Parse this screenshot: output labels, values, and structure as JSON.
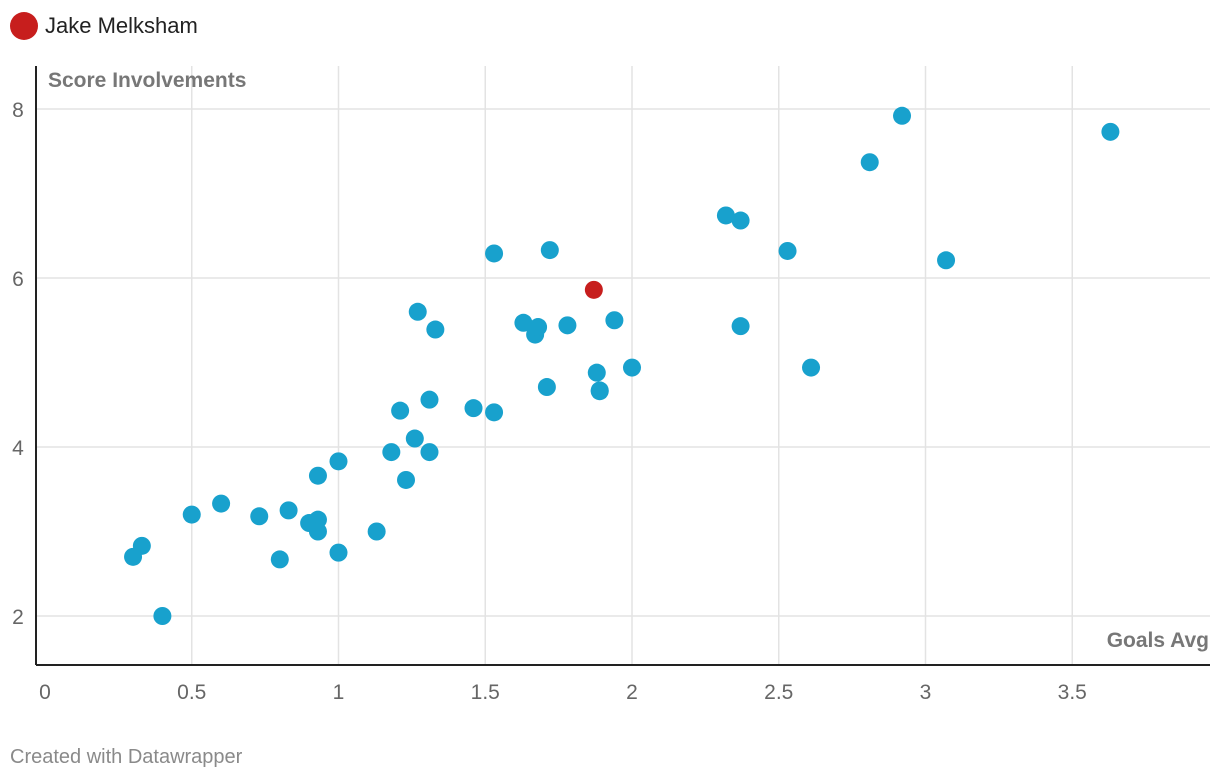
{
  "legend": {
    "label": "Jake Melksham",
    "color": "#c71e1d"
  },
  "footer": "Created with Datawrapper",
  "colors": {
    "default_point": "#18a1cd",
    "highlight_point": "#c71e1d",
    "grid": "#e3e3e3",
    "axis": "#222222",
    "tick_text": "#666666",
    "axis_title": "#777777"
  },
  "chart_data": {
    "type": "scatter",
    "title": "",
    "xlabel": "Goals Avg",
    "ylabel": "Score Involvements",
    "xlim": [
      0,
      3.95
    ],
    "ylim": [
      1.45,
      8.5
    ],
    "xticks": [
      "0",
      "0.5",
      "1",
      "1.5",
      "2",
      "2.5",
      "3",
      "3.5"
    ],
    "yticks": [
      "2",
      "4",
      "6",
      "8"
    ],
    "grid": true,
    "highlight": {
      "name": "Jake Melksham",
      "x": 1.87,
      "y": 5.86
    },
    "points": [
      {
        "x": 0.3,
        "y": 2.7
      },
      {
        "x": 0.33,
        "y": 2.83
      },
      {
        "x": 0.4,
        "y": 2.0
      },
      {
        "x": 0.5,
        "y": 3.2
      },
      {
        "x": 0.6,
        "y": 3.33
      },
      {
        "x": 0.73,
        "y": 3.18
      },
      {
        "x": 0.8,
        "y": 2.67
      },
      {
        "x": 0.83,
        "y": 3.25
      },
      {
        "x": 0.9,
        "y": 3.1
      },
      {
        "x": 0.93,
        "y": 3.14
      },
      {
        "x": 0.93,
        "y": 3.0
      },
      {
        "x": 0.93,
        "y": 3.66
      },
      {
        "x": 1.0,
        "y": 3.83
      },
      {
        "x": 1.0,
        "y": 2.75
      },
      {
        "x": 1.13,
        "y": 3.0
      },
      {
        "x": 1.18,
        "y": 3.94
      },
      {
        "x": 1.21,
        "y": 4.43
      },
      {
        "x": 1.23,
        "y": 3.61
      },
      {
        "x": 1.26,
        "y": 4.1
      },
      {
        "x": 1.27,
        "y": 5.6
      },
      {
        "x": 1.31,
        "y": 4.56
      },
      {
        "x": 1.31,
        "y": 3.94
      },
      {
        "x": 1.33,
        "y": 5.39
      },
      {
        "x": 1.46,
        "y": 4.46
      },
      {
        "x": 1.53,
        "y": 4.41
      },
      {
        "x": 1.53,
        "y": 6.29
      },
      {
        "x": 1.63,
        "y": 5.47
      },
      {
        "x": 1.67,
        "y": 5.33
      },
      {
        "x": 1.68,
        "y": 5.42
      },
      {
        "x": 1.71,
        "y": 4.71
      },
      {
        "x": 1.72,
        "y": 6.33
      },
      {
        "x": 1.78,
        "y": 5.44
      },
      {
        "x": 1.88,
        "y": 4.88
      },
      {
        "x": 1.89,
        "y": 4.67
      },
      {
        "x": 1.89,
        "y": 4.66
      },
      {
        "x": 1.94,
        "y": 5.5
      },
      {
        "x": 2.0,
        "y": 4.94
      },
      {
        "x": 2.32,
        "y": 6.74
      },
      {
        "x": 2.37,
        "y": 6.68
      },
      {
        "x": 2.37,
        "y": 5.43
      },
      {
        "x": 2.53,
        "y": 6.32
      },
      {
        "x": 2.61,
        "y": 4.94
      },
      {
        "x": 2.81,
        "y": 7.37
      },
      {
        "x": 2.92,
        "y": 7.92
      },
      {
        "x": 3.07,
        "y": 6.21
      },
      {
        "x": 3.63,
        "y": 7.73
      }
    ]
  }
}
